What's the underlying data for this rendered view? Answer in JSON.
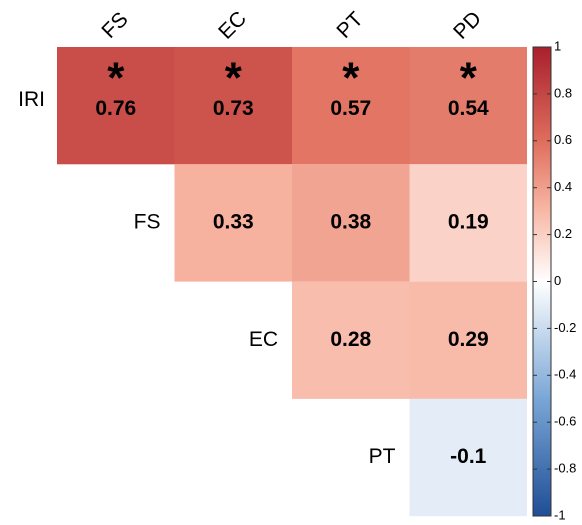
{
  "chart_data": {
    "type": "heatmap",
    "columns": [
      "FS",
      "EC",
      "PT",
      "PD"
    ],
    "rows": [
      "IRI",
      "FS",
      "EC",
      "PT"
    ],
    "values": [
      [
        0.76,
        0.73,
        0.57,
        0.54
      ],
      [
        null,
        0.33,
        0.38,
        0.19
      ],
      [
        null,
        null,
        0.28,
        0.29
      ],
      [
        null,
        null,
        null,
        -0.1
      ]
    ],
    "significance": [
      [
        "*",
        "*",
        "*",
        "*"
      ],
      [
        null,
        null,
        null,
        null
      ],
      [
        null,
        null,
        null,
        null
      ],
      [
        null,
        null,
        null,
        null
      ]
    ],
    "colorscale": [
      [
        -1,
        "#1f4e96"
      ],
      [
        -0.5,
        "#7aa6d6"
      ],
      [
        0,
        "#ffffff"
      ],
      [
        0.3,
        "#f8b8a6"
      ],
      [
        0.6,
        "#df6d5c"
      ],
      [
        1,
        "#a8202c"
      ]
    ],
    "ylim": [
      -1,
      1
    ],
    "yticks": [
      1,
      0.8,
      0.6,
      0.4,
      0.2,
      0,
      -0.2,
      -0.4,
      -0.6,
      -0.8,
      -1
    ]
  }
}
